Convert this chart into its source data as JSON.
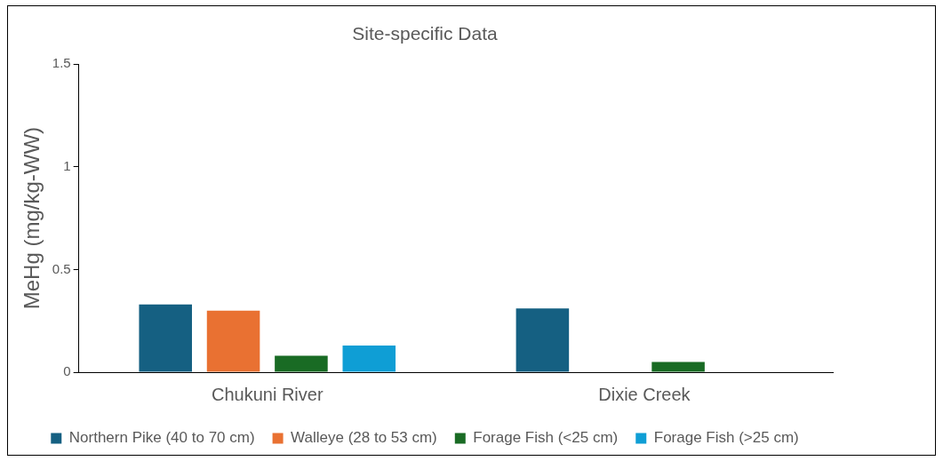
{
  "chart_data": {
    "type": "bar",
    "title": "Site-specific Data",
    "ylabel": "MeHg (mg/kg-WW)",
    "categories": [
      "Chukuni River",
      "Dixie Creek"
    ],
    "series": [
      {
        "name": "Northern Pike (40 to 70 cm)",
        "color": "#156082",
        "values": [
          0.33,
          0.31
        ]
      },
      {
        "name": "Walleye (28 to 53 cm)",
        "color": "#e97132",
        "values": [
          0.3,
          null
        ]
      },
      {
        "name": "Forage Fish (<25 cm)",
        "color": "#196b24",
        "values": [
          0.08,
          0.05
        ]
      },
      {
        "name": "Forage Fish (>25 cm)",
        "color": "#0f9ed5",
        "values": [
          0.13,
          null
        ]
      }
    ],
    "ylim": [
      0,
      1.5
    ],
    "yticks": [
      0,
      0.5,
      1,
      1.5
    ],
    "grid": false,
    "legend": "bottom"
  }
}
